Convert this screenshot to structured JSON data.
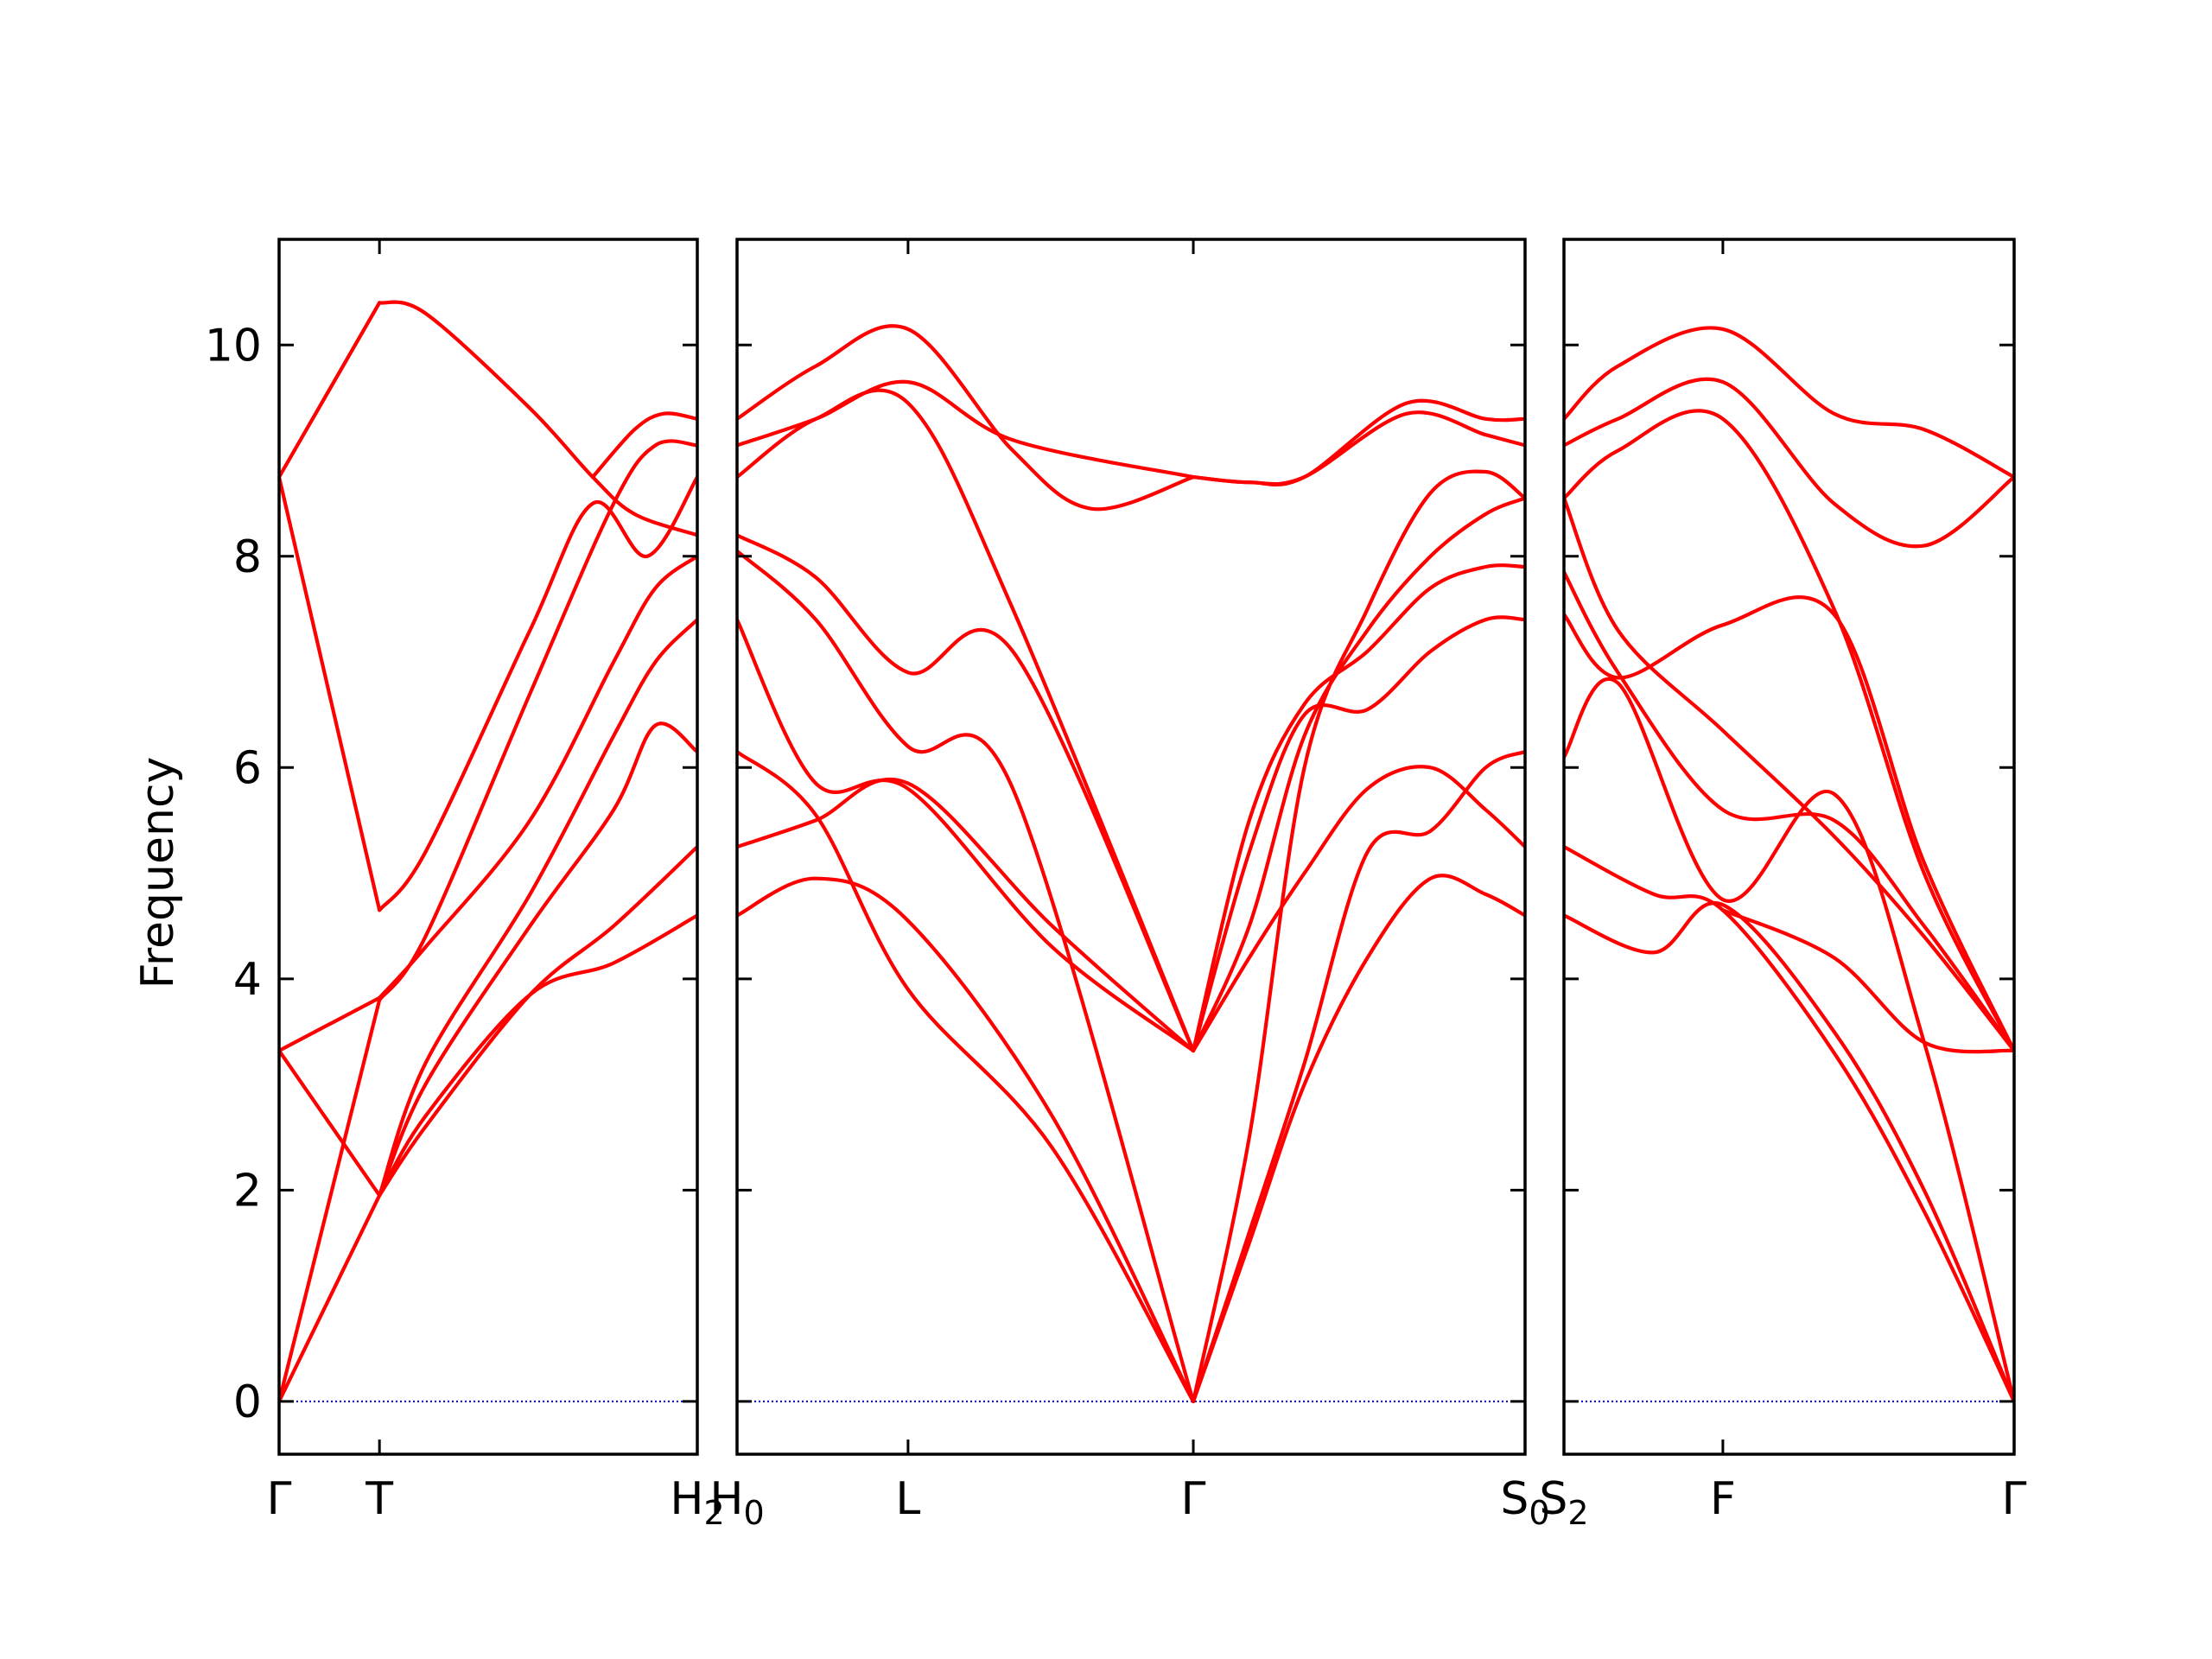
{
  "chart_data": {
    "type": "line",
    "ylabel": "Frequency",
    "ylim": [
      -0.5,
      11
    ],
    "yticks": [
      0,
      2,
      4,
      6,
      8,
      10
    ],
    "colors": {
      "bands": "#ff0000",
      "zero_line": "#0000cc",
      "frame": "#000000"
    },
    "grid": false,
    "panels": [
      {
        "xlim": [
          0,
          1
        ],
        "ticks": [
          {
            "pos": 0.0,
            "label": "Γ"
          },
          {
            "pos": 0.24,
            "label": "T"
          },
          {
            "pos": 1.0,
            "label": "H",
            "sub": "2"
          }
        ],
        "bands": [
          {
            "x": [
              0,
              0.24
            ],
            "y": [
              0,
              1.95
            ]
          },
          {
            "x": [
              0,
              0.24
            ],
            "y": [
              0,
              3.8
            ]
          },
          {
            "x": [
              0,
              0.24
            ],
            "y": [
              3.32,
              1.95
            ]
          },
          {
            "x": [
              0,
              0.24
            ],
            "y": [
              3.32,
              3.82
            ]
          },
          {
            "x": [
              0,
              0.24
            ],
            "y": [
              8.75,
              4.65
            ]
          },
          {
            "x": [
              0,
              0.24
            ],
            "y": [
              8.75,
              10.4
            ]
          },
          {
            "x": [
              0.24,
              0.35,
              0.6,
              0.8,
              1.0
            ],
            "y": [
              1.95,
              2.6,
              3.85,
              4.5,
              5.25
            ]
          },
          {
            "x": [
              0.24,
              0.35,
              0.6,
              0.8,
              1.0
            ],
            "y": [
              1.95,
              2.7,
              3.85,
              4.15,
              4.6
            ]
          },
          {
            "x": [
              0.24,
              0.35,
              0.6,
              0.8,
              0.9,
              1.0
            ],
            "y": [
              1.95,
              3.0,
              4.5,
              5.6,
              6.4,
              6.15
            ]
          },
          {
            "x": [
              0.24,
              0.35,
              0.6,
              0.8,
              0.9,
              1.0
            ],
            "y": [
              1.95,
              3.2,
              4.8,
              6.3,
              7.0,
              7.4
            ]
          },
          {
            "x": [
              0.24,
              0.35,
              0.6,
              0.8,
              0.9,
              1.0
            ],
            "y": [
              3.82,
              4.3,
              5.5,
              7.0,
              7.7,
              8.0
            ]
          },
          {
            "x": [
              0.24,
              0.35,
              0.6,
              0.8,
              0.9,
              1.0
            ],
            "y": [
              3.8,
              4.4,
              6.7,
              8.5,
              9.05,
              9.05
            ]
          },
          {
            "x": [
              0.24,
              0.35,
              0.6,
              0.75,
              0.88,
              1.0
            ],
            "y": [
              4.65,
              5.2,
              7.3,
              8.5,
              8.0,
              8.75
            ]
          },
          {
            "x": [
              0.24,
              0.35,
              0.6,
              0.75,
              0.85,
              1.0
            ],
            "y": [
              10.4,
              10.3,
              9.4,
              8.75,
              8.4,
              8.2
            ]
          },
          {
            "x": [
              0.75,
              0.85,
              0.92,
              1.0
            ],
            "y": [
              8.75,
              9.2,
              9.35,
              9.3
            ]
          }
        ]
      },
      {
        "xlim": [
          0,
          1
        ],
        "ticks": [
          {
            "pos": 0.0,
            "label": "H",
            "sub": "0"
          },
          {
            "pos": 0.217,
            "label": "L"
          },
          {
            "pos": 0.579,
            "label": "Γ"
          },
          {
            "pos": 1.0,
            "label": "S",
            "sub": "0"
          }
        ],
        "bands": [
          {
            "x": [
              0,
              0.1,
              0.217,
              0.4,
              0.579
            ],
            "y": [
              4.6,
              4.95,
              4.55,
              2.7,
              0
            ]
          },
          {
            "x": [
              0,
              0.1,
              0.217,
              0.4,
              0.579
            ],
            "y": [
              6.15,
              5.55,
              3.9,
              2.4,
              0
            ]
          },
          {
            "x": [
              0,
              0.1,
              0.217,
              0.4,
              0.579
            ],
            "y": [
              5.25,
              5.5,
              5.85,
              4.5,
              3.32
            ]
          },
          {
            "x": [
              0,
              0.1,
              0.217,
              0.4,
              0.579
            ],
            "y": [
              7.4,
              5.85,
              5.8,
              4.3,
              3.32
            ]
          },
          {
            "x": [
              0,
              0.1,
              0.217,
              0.35,
              0.579
            ],
            "y": [
              8.05,
              7.4,
              6.2,
              5.8,
              0
            ]
          },
          {
            "x": [
              0,
              0.1,
              0.217,
              0.35,
              0.579
            ],
            "y": [
              8.2,
              7.8,
              6.9,
              7.1,
              3.32
            ]
          },
          {
            "x": [
              0,
              0.1,
              0.217,
              0.35,
              0.579
            ],
            "y": [
              8.75,
              9.3,
              9.45,
              7.5,
              3.32
            ]
          },
          {
            "x": [
              0,
              0.1,
              0.217,
              0.35,
              0.579
            ],
            "y": [
              9.05,
              9.3,
              9.65,
              9.1,
              8.75
            ]
          },
          {
            "x": [
              0,
              0.1,
              0.217,
              0.35,
              0.45,
              0.579
            ],
            "y": [
              9.3,
              9.8,
              10.15,
              9.0,
              8.45,
              8.75
            ]
          },
          {
            "x": [
              0.579,
              0.65,
              0.72,
              0.85,
              0.95,
              1.0
            ],
            "y": [
              8.75,
              8.7,
              8.75,
              9.45,
              9.3,
              9.3
            ]
          },
          {
            "x": [
              0.579,
              0.65,
              0.72,
              0.85,
              0.95,
              1.0
            ],
            "y": [
              8.75,
              8.7,
              8.75,
              9.35,
              9.15,
              9.05
            ]
          },
          {
            "x": [
              0.579,
              0.65,
              0.72,
              0.8,
              0.88,
              0.95,
              1.0
            ],
            "y": [
              0,
              1.5,
              3.0,
              4.2,
              4.95,
              4.8,
              4.6
            ]
          },
          {
            "x": [
              0.579,
              0.65,
              0.72,
              0.8,
              0.88,
              0.95,
              1.0
            ],
            "y": [
              0,
              1.6,
              3.2,
              5.2,
              5.4,
              6.0,
              6.15
            ]
          },
          {
            "x": [
              0.579,
              0.65,
              0.72,
              0.8,
              0.88,
              0.95,
              1.0
            ],
            "y": [
              3.32,
              4.2,
              5.0,
              5.8,
              6.0,
              5.6,
              5.25
            ]
          },
          {
            "x": [
              0.579,
              0.65,
              0.72,
              0.8,
              0.88,
              0.95,
              1.0
            ],
            "y": [
              3.32,
              5.2,
              6.5,
              6.55,
              7.1,
              7.4,
              7.4
            ]
          },
          {
            "x": [
              0.579,
              0.65,
              0.72,
              0.8,
              0.88,
              0.95,
              1.0
            ],
            "y": [
              3.32,
              5.5,
              6.6,
              7.1,
              7.7,
              7.9,
              7.9
            ]
          },
          {
            "x": [
              0.579,
              0.65,
              0.72,
              0.8,
              0.88,
              0.95,
              1.0
            ],
            "y": [
              0,
              2.5,
              6.0,
              7.5,
              8.6,
              8.8,
              8.55
            ]
          },
          {
            "x": [
              0.579,
              0.65,
              0.72,
              0.8,
              0.88,
              0.95,
              1.0
            ],
            "y": [
              3.32,
              4.5,
              6.3,
              7.3,
              8.0,
              8.4,
              8.55
            ]
          }
        ]
      },
      {
        "xlim": [
          0,
          1
        ],
        "ticks": [
          {
            "pos": 0.0,
            "label": "S",
            "sub": "2"
          },
          {
            "pos": 0.353,
            "label": "F"
          },
          {
            "pos": 1.0,
            "label": "Γ"
          }
        ],
        "bands": [
          {
            "x": [
              0,
              0.2,
              0.353,
              0.6,
              0.8,
              1.0
            ],
            "y": [
              4.6,
              4.25,
              4.7,
              3.5,
              2.0,
              0
            ]
          },
          {
            "x": [
              0,
              0.2,
              0.353,
              0.6,
              0.8,
              1.0
            ],
            "y": [
              5.25,
              4.8,
              4.65,
              3.3,
              1.8,
              0
            ]
          },
          {
            "x": [
              0,
              0.12,
              0.353,
              0.6,
              0.8,
              1.0
            ],
            "y": [
              6.1,
              6.8,
              4.75,
              5.75,
              3.4,
              0
            ]
          },
          {
            "x": [
              0,
              0.12,
              0.353,
              0.6,
              0.8,
              1.0
            ],
            "y": [
              7.45,
              6.85,
              7.35,
              7.45,
              5.1,
              3.32
            ]
          },
          {
            "x": [
              0,
              0.12,
              0.353,
              0.6,
              0.8,
              1.0
            ],
            "y": [
              7.85,
              6.9,
              5.6,
              5.5,
              4.5,
              3.32
            ]
          },
          {
            "x": [
              0,
              0.12,
              0.353,
              0.6,
              0.8,
              1.0
            ],
            "y": [
              8.55,
              7.3,
              6.35,
              5.35,
              4.4,
              3.32
            ]
          },
          {
            "x": [
              0,
              0.12,
              0.353,
              0.6,
              0.8,
              1.0
            ],
            "y": [
              8.55,
              9.0,
              9.3,
              7.5,
              5.0,
              3.32
            ]
          },
          {
            "x": [
              0,
              0.12,
              0.353,
              0.6,
              0.8,
              1.0
            ],
            "y": [
              9.05,
              9.3,
              9.65,
              8.5,
              8.1,
              8.75
            ]
          },
          {
            "x": [
              0,
              0.12,
              0.353,
              0.6,
              0.8,
              1.0
            ],
            "y": [
              9.3,
              9.8,
              10.15,
              9.35,
              9.2,
              8.75
            ]
          },
          {
            "x": [
              0.353,
              0.6,
              0.8,
              1.0
            ],
            "y": [
              4.65,
              4.2,
              3.4,
              3.32
            ]
          }
        ]
      }
    ]
  }
}
